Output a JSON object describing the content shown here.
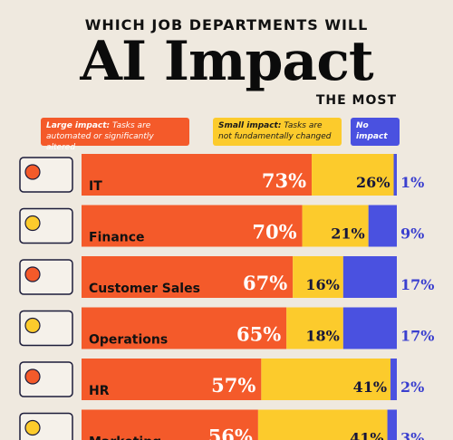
{
  "title_top": "WHICH JOB DEPARTMENTS WILL",
  "title_main": "AI Impact",
  "title_bottom": "THE MOST",
  "legend": {
    "large_title": "Large impact:",
    "large_desc": "Tasks are automated or significantly altered",
    "small_title": "Small impact:",
    "small_desc": "Tasks are not fundamentally changed",
    "none_title": "No impact"
  },
  "colors": {
    "large": "#f45a2a",
    "small": "#fccb2c",
    "none": "#4a51e0",
    "background": "#efe9df"
  },
  "chart_data": {
    "type": "bar",
    "stacked": true,
    "orientation": "horizontal",
    "categories": [
      "IT",
      "Finance",
      "Customer Sales",
      "Operations",
      "HR",
      "Marketing"
    ],
    "series": [
      {
        "name": "Large impact",
        "values": [
          73,
          70,
          67,
          65,
          57,
          56
        ]
      },
      {
        "name": "Small impact",
        "values": [
          26,
          21,
          16,
          18,
          41,
          41
        ]
      },
      {
        "name": "No impact",
        "values": [
          1,
          9,
          17,
          17,
          2,
          3
        ]
      }
    ],
    "value_labels": [
      [
        "73%",
        "26%",
        "1%"
      ],
      [
        "70%",
        "21%",
        "9%"
      ],
      [
        "67%",
        "16%",
        "17%"
      ],
      [
        "65%",
        "18%",
        "17%"
      ],
      [
        "57%",
        "41%",
        "2%"
      ],
      [
        "56%",
        "41%",
        "3%"
      ]
    ],
    "xlim": [
      0,
      100
    ]
  }
}
